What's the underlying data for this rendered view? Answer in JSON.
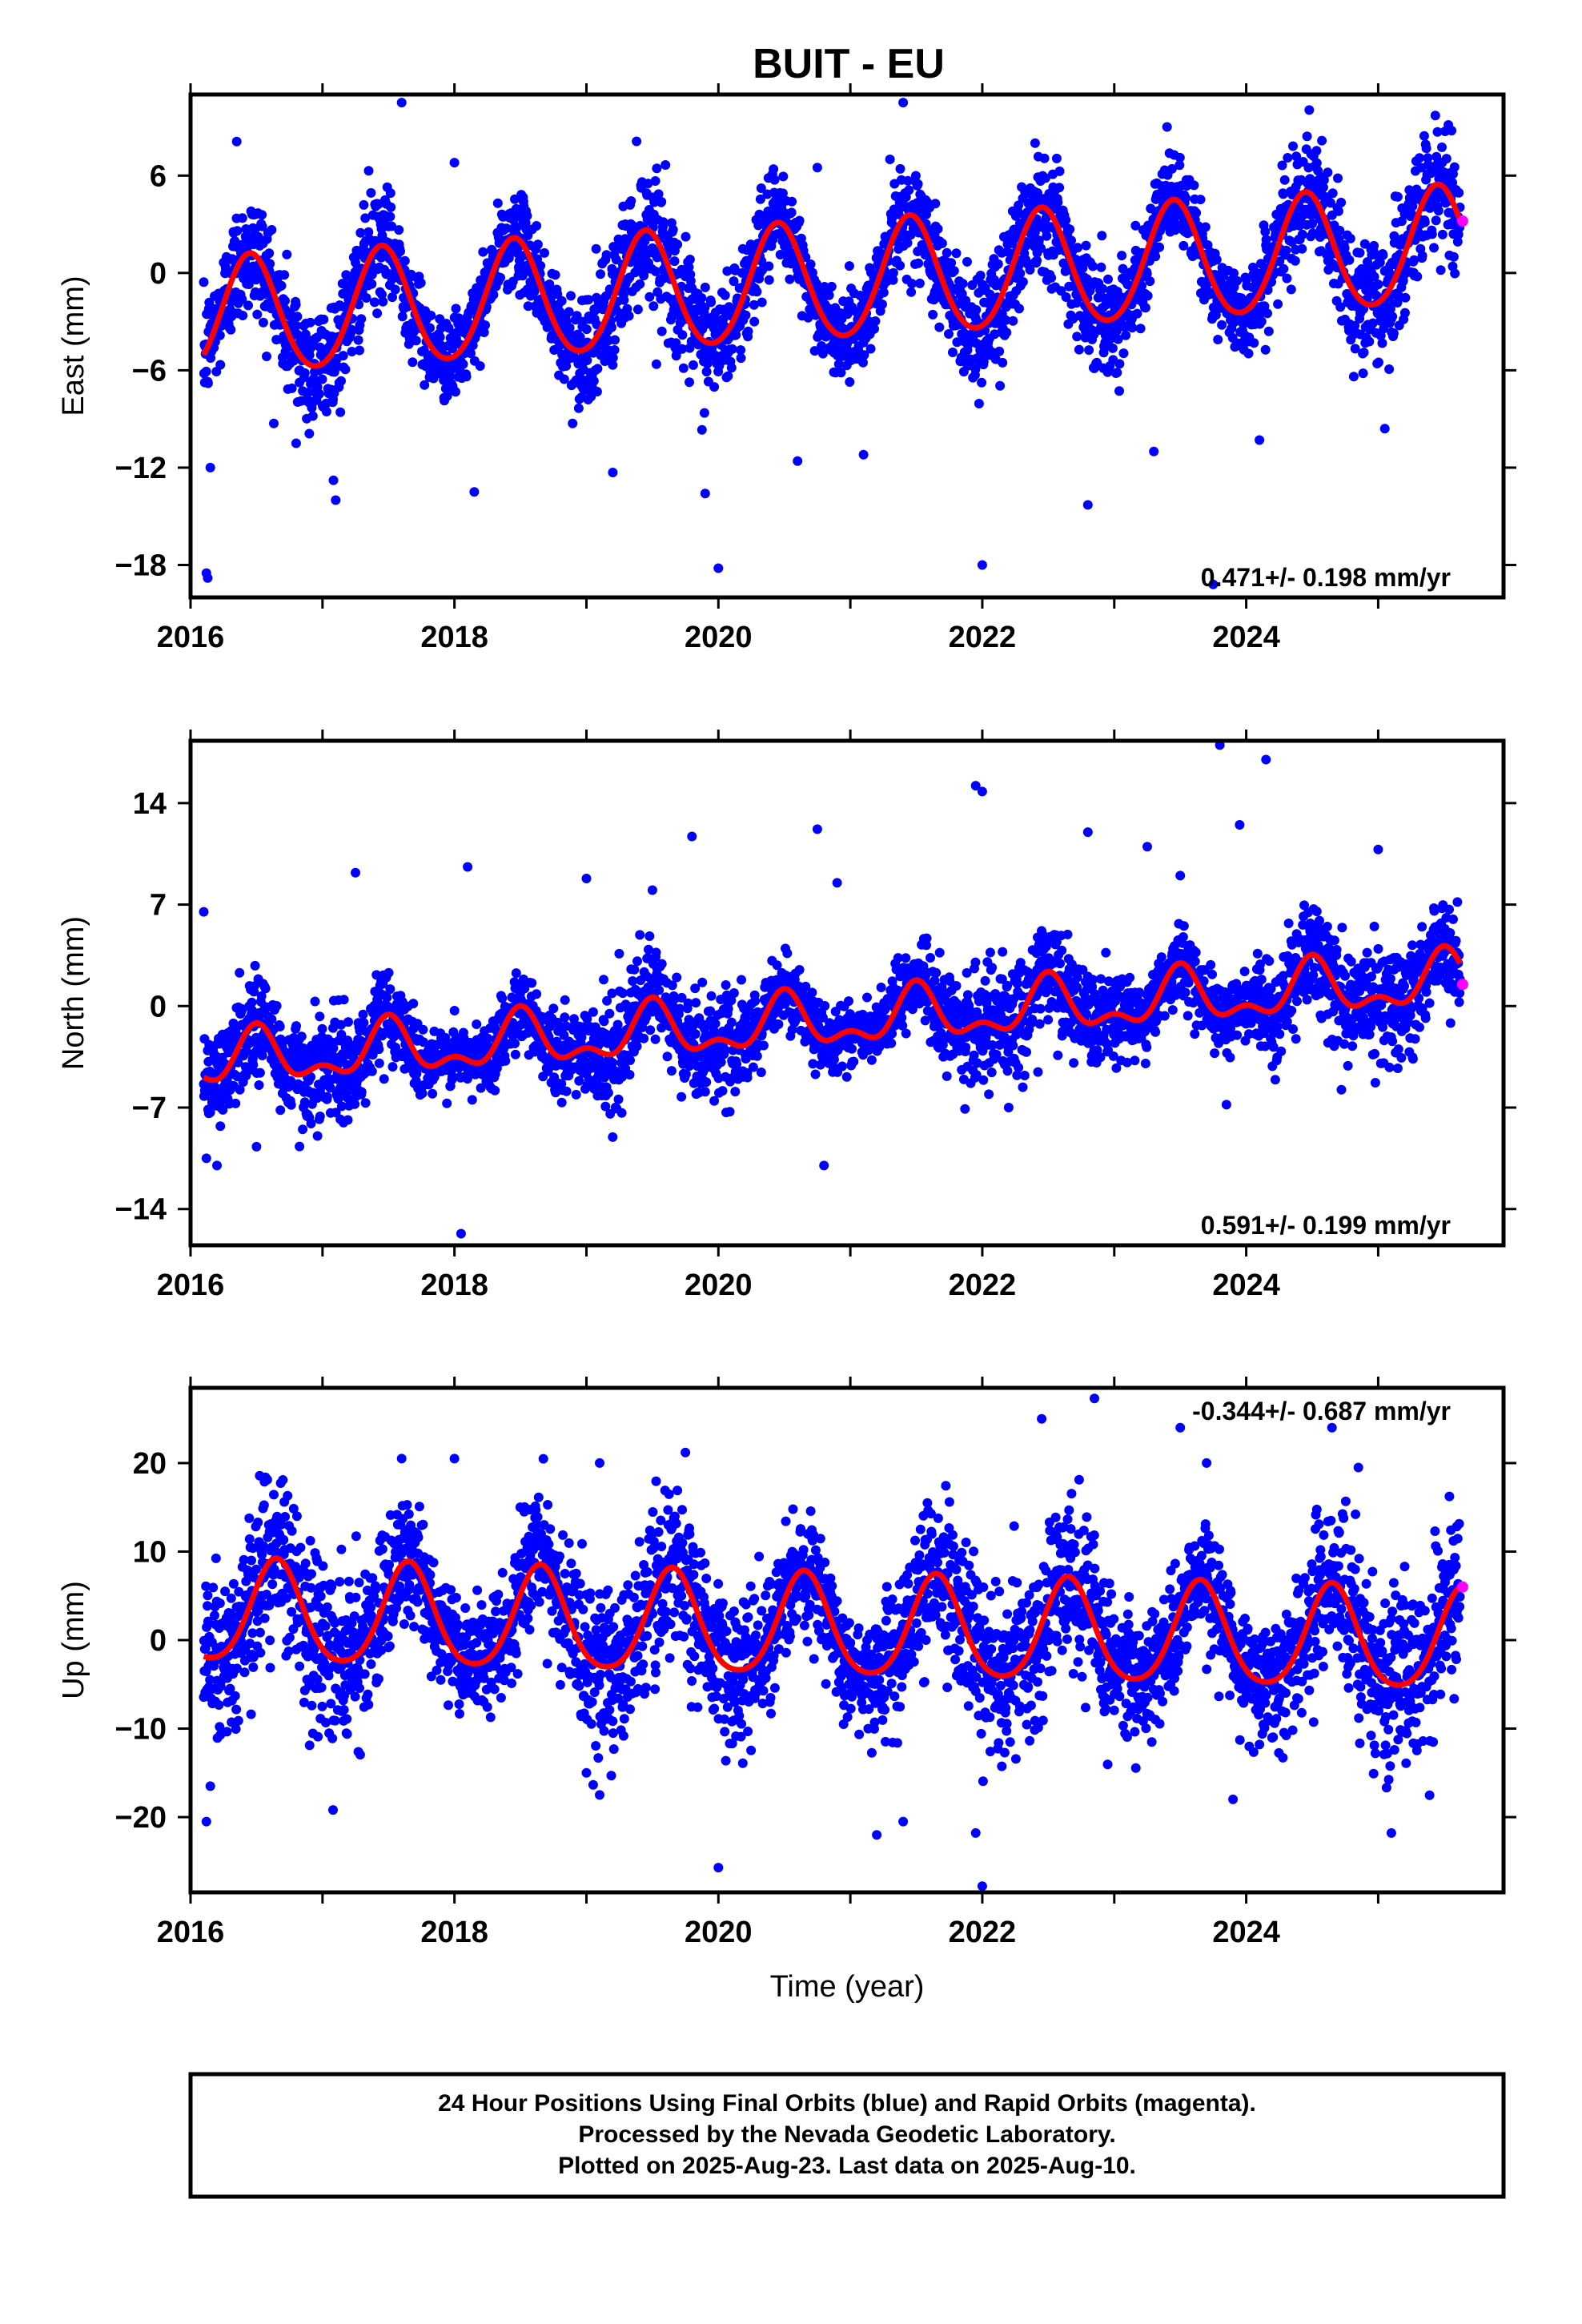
{
  "title": "BUIT - EU",
  "chart_data": [
    {
      "type": "scatter",
      "ylabel": "East (mm)",
      "xlabel": "",
      "xlim": [
        2016.0,
        2025.95
      ],
      "ylim": [
        -20.0,
        11.0
      ],
      "yticks": [
        6,
        0,
        -6,
        -12,
        -18
      ],
      "ytick_labels": [
        "6",
        "0",
        "−6",
        "−12",
        "−18"
      ],
      "xticks": [
        2016,
        2018,
        2020,
        2022,
        2024
      ],
      "xtick_labels": [
        "2016",
        "2018",
        "2020",
        "2022",
        "2024"
      ],
      "rate_text": "0.471+/- 0.198 mm/yr",
      "rate_position": "bottom-right",
      "model": {
        "start": 2016.1,
        "end": 2025.62,
        "offset": -1.0,
        "rate": 0.471,
        "annual_amp": 3.6,
        "phase_peak": 0.45,
        "semiannual_amp": 0.3
      },
      "scatter_sigma": 1.6,
      "outliers": [
        [
          2016.12,
          -18.5
        ],
        [
          2016.13,
          -18.8
        ],
        [
          2017.6,
          10.5
        ],
        [
          2020.0,
          -18.2
        ],
        [
          2022.0,
          -18.0
        ],
        [
          2023.75,
          -19.2
        ],
        [
          2021.4,
          10.5
        ],
        [
          2016.35,
          8.1
        ],
        [
          2017.35,
          6.3
        ],
        [
          2018.0,
          6.8
        ],
        [
          2018.15,
          -13.5
        ],
        [
          2019.2,
          -12.3
        ],
        [
          2019.9,
          -13.6
        ],
        [
          2020.6,
          -11.6
        ],
        [
          2021.1,
          -11.2
        ],
        [
          2022.8,
          -14.3
        ],
        [
          2024.1,
          -10.3
        ],
        [
          2025.05,
          -9.6
        ],
        [
          2017.1,
          -14.0
        ],
        [
          2016.15,
          -12.0
        ],
        [
          2023.4,
          9.0
        ],
        [
          2022.4,
          8.0
        ],
        [
          2020.75,
          6.5
        ],
        [
          2021.3,
          7.0
        ],
        [
          2016.8,
          -10.5
        ],
        [
          2023.3,
          -11.0
        ]
      ],
      "last_rapid": {
        "x": 2025.64,
        "y": 3.2
      }
    },
    {
      "type": "scatter",
      "ylabel": "North (mm)",
      "xlabel": "",
      "xlim": [
        2016.0,
        2025.95
      ],
      "ylim": [
        -16.5,
        18.3
      ],
      "yticks": [
        14,
        7,
        0,
        -7,
        -14
      ],
      "ytick_labels": [
        "14",
        "7",
        "0",
        "−7",
        "−14"
      ],
      "xticks": [
        2016,
        2018,
        2020,
        2022,
        2024
      ],
      "xtick_labels": [
        "2016",
        "2018",
        "2020",
        "2022",
        "2024"
      ],
      "rate_text": "0.591+/- 0.199 mm/yr",
      "rate_position": "bottom-right",
      "model": {
        "start": 2016.1,
        "end": 2025.62,
        "offset": -1.6,
        "rate": 0.591,
        "annual_amp": 1.6,
        "phase_peak": 0.5,
        "semiannual_amp": 0.9
      },
      "scatter_sigma": 1.5,
      "outliers": [
        [
          2016.1,
          6.5
        ],
        [
          2016.12,
          -10.5
        ],
        [
          2016.2,
          -11.0
        ],
        [
          2017.25,
          9.2
        ],
        [
          2018.05,
          -15.7
        ],
        [
          2018.1,
          9.6
        ],
        [
          2019.0,
          8.8
        ],
        [
          2019.8,
          11.7
        ],
        [
          2020.75,
          12.2
        ],
        [
          2020.8,
          -11.0
        ],
        [
          2020.9,
          8.5
        ],
        [
          2021.95,
          15.2
        ],
        [
          2022.0,
          14.8
        ],
        [
          2022.8,
          12.0
        ],
        [
          2023.25,
          11.0
        ],
        [
          2023.8,
          18.0
        ],
        [
          2023.85,
          -6.8
        ],
        [
          2023.95,
          12.5
        ],
        [
          2024.15,
          17.0
        ],
        [
          2025.0,
          10.8
        ],
        [
          2016.5,
          -9.7
        ],
        [
          2019.5,
          8.0
        ],
        [
          2022.2,
          -7.0
        ],
        [
          2023.5,
          9.0
        ]
      ],
      "last_rapid": {
        "x": 2025.64,
        "y": 1.5
      }
    },
    {
      "type": "scatter",
      "ylabel": "Up (mm)",
      "xlabel": "Time (year)",
      "xlim": [
        2016.0,
        2025.95
      ],
      "ylim": [
        -28.5,
        28.5
      ],
      "yticks": [
        20,
        10,
        0,
        -10,
        -20
      ],
      "ytick_labels": [
        "20",
        "10",
        "0",
        "−10",
        "−20"
      ],
      "xticks": [
        2016,
        2018,
        2020,
        2022,
        2024
      ],
      "xtick_labels": [
        "2016",
        "2018",
        "2020",
        "2022",
        "2024"
      ],
      "rate_text": "-0.344+/- 0.687 mm/yr",
      "rate_position": "top-right",
      "model": {
        "start": 2016.1,
        "end": 2025.62,
        "offset": 1.6,
        "rate": -0.344,
        "annual_amp": 5.7,
        "phase_peak": 0.65,
        "semiannual_amp": 0.8
      },
      "scatter_sigma": 4.0,
      "outliers": [
        [
          2016.12,
          -20.5
        ],
        [
          2016.15,
          -16.5
        ],
        [
          2017.6,
          20.5
        ],
        [
          2018.0,
          20.5
        ],
        [
          2019.1,
          20.0
        ],
        [
          2019.1,
          -17.5
        ],
        [
          2019.75,
          21.2
        ],
        [
          2020.0,
          -25.7
        ],
        [
          2021.2,
          -22.0
        ],
        [
          2021.95,
          -21.8
        ],
        [
          2022.0,
          -27.8
        ],
        [
          2022.45,
          25.0
        ],
        [
          2022.85,
          27.3
        ],
        [
          2023.5,
          24.0
        ],
        [
          2023.7,
          20.0
        ],
        [
          2024.65,
          24.0
        ],
        [
          2024.85,
          19.5
        ],
        [
          2025.1,
          -21.8
        ],
        [
          2021.4,
          -20.5
        ],
        [
          2019.0,
          -15.0
        ],
        [
          2023.9,
          -18.0
        ]
      ],
      "last_rapid": {
        "x": 2025.64,
        "y": 6.0
      }
    }
  ],
  "footer": {
    "line1": "24 Hour Positions Using Final Orbits (blue) and Rapid Orbits (magenta).",
    "line2": "Processed by the Nevada Geodetic Laboratory.",
    "line3": "Plotted on 2025-Aug-23. Last data on 2025-Aug-10."
  },
  "colors": {
    "final": "#0000ff",
    "rapid": "#ff00ff",
    "model": "#ff0000",
    "frame": "#000000"
  }
}
